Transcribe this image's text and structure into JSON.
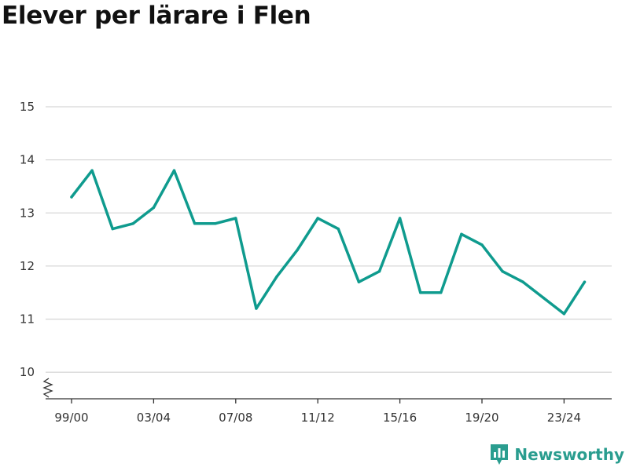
{
  "colors": {
    "line": "#0f9b8e",
    "grid": "#d8d8d8",
    "axis": "#333333",
    "brand": "#2a9d8f"
  },
  "brand": {
    "name": "Newsworthy",
    "icon": "bar-chart-logo-icon"
  },
  "chart_data": {
    "type": "line",
    "title": "Elever per lärare i Flen",
    "xlabel": "",
    "ylabel": "",
    "x": [
      "99/00",
      "00/01",
      "01/02",
      "02/03",
      "03/04",
      "04/05",
      "05/06",
      "06/07",
      "07/08",
      "08/09",
      "09/10",
      "10/11",
      "11/12",
      "12/13",
      "13/14",
      "14/15",
      "15/16",
      "16/17",
      "17/18",
      "18/19",
      "19/20",
      "20/21",
      "21/22",
      "22/23",
      "23/24",
      "24/25"
    ],
    "x_tick_labels": [
      "99/00",
      "03/04",
      "07/08",
      "11/12",
      "15/16",
      "19/20",
      "23/24"
    ],
    "y_ticks": [
      10,
      11,
      12,
      13,
      14,
      15
    ],
    "ylim": [
      9.5,
      15
    ],
    "y_axis_break": true,
    "grid": true,
    "series": [
      {
        "values": [
          13.3,
          13.8,
          12.7,
          12.8,
          13.1,
          13.8,
          12.8,
          12.8,
          12.9,
          11.2,
          11.8,
          12.3,
          12.9,
          12.7,
          11.7,
          11.9,
          12.9,
          11.5,
          11.5,
          12.6,
          12.4,
          11.9,
          11.7,
          11.4,
          11.1,
          11.7
        ]
      }
    ]
  }
}
